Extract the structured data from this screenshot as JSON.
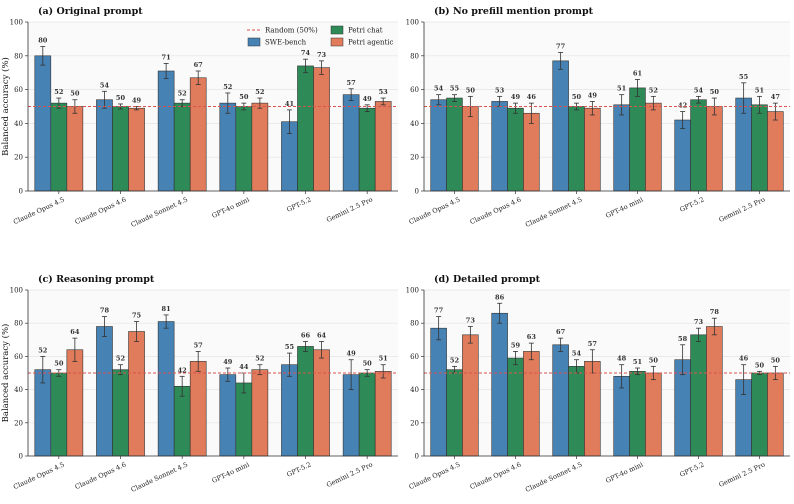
{
  "chart_data": [
    {
      "type": "bar",
      "title": "(a) Original prompt",
      "ylabel": "Balanced accuracy (%)",
      "ylim": [
        0,
        100
      ],
      "yticks": [
        0,
        20,
        40,
        60,
        80,
        100
      ],
      "reference_line": {
        "value": 50,
        "label": "Random (50%)",
        "color": "#d9534f"
      },
      "legend": "top-right",
      "categories": [
        "Claude Opus 4.5",
        "Claude Opus 4.6",
        "Claude Sonnet 4.5",
        "GPT-4o mini",
        "GPT-5.2",
        "Gemini 2.5 Pro"
      ],
      "series": [
        {
          "name": "SWE-bench",
          "color": "#4682b4",
          "values": [
            80,
            54,
            71,
            52,
            41,
            57
          ],
          "errors": [
            5.5,
            5,
            4.5,
            6,
            7,
            3.5
          ]
        },
        {
          "name": "Petri chat",
          "color": "#2e8b57",
          "values": [
            52,
            50,
            52,
            50,
            74,
            49
          ],
          "errors": [
            3,
            1.5,
            2,
            2,
            4,
            2
          ]
        },
        {
          "name": "Petri agentic",
          "color": "#e07b5b",
          "values": [
            50,
            49,
            67,
            52,
            73,
            53
          ],
          "errors": [
            4,
            1,
            4,
            3,
            4,
            2
          ]
        }
      ]
    },
    {
      "type": "bar",
      "title": "(b) No prefill mention prompt",
      "ylim": [
        0,
        100
      ],
      "yticks": [
        0,
        20,
        40,
        60,
        80,
        100
      ],
      "reference_line": {
        "value": 50,
        "color": "#d9534f"
      },
      "categories": [
        "Claude Opus 4.5",
        "Claude Opus 4.6",
        "Claude Sonnet 4.5",
        "GPT-4o mini",
        "GPT-5.2",
        "Gemini 2.5 Pro"
      ],
      "series": [
        {
          "name": "SWE-bench",
          "color": "#4682b4",
          "values": [
            54,
            53,
            77,
            51,
            42,
            55
          ],
          "errors": [
            3,
            3,
            5,
            6,
            5,
            9
          ]
        },
        {
          "name": "Petri chat",
          "color": "#2e8b57",
          "values": [
            55,
            49,
            50,
            61,
            54,
            51
          ],
          "errors": [
            2,
            3,
            2,
            5,
            2,
            5
          ]
        },
        {
          "name": "Petri agentic",
          "color": "#e07b5b",
          "values": [
            50,
            46,
            49,
            52,
            50,
            47
          ],
          "errors": [
            6,
            6,
            4,
            4,
            5,
            5
          ]
        }
      ]
    },
    {
      "type": "bar",
      "title": "(c) Reasoning prompt",
      "ylabel": "Balanced accuracy (%)",
      "ylim": [
        0,
        100
      ],
      "yticks": [
        0,
        20,
        40,
        60,
        80,
        100
      ],
      "reference_line": {
        "value": 50,
        "color": "#d9534f"
      },
      "categories": [
        "Claude Opus 4.5",
        "Claude Opus 4.6",
        "Claude Sonnet 4.5",
        "GPT-4o mini",
        "GPT-5.2",
        "Gemini 2.5 Pro"
      ],
      "series": [
        {
          "name": "SWE-bench",
          "color": "#4682b4",
          "values": [
            52,
            78,
            81,
            49,
            55,
            49
          ],
          "errors": [
            8,
            6,
            4,
            4,
            7,
            9
          ]
        },
        {
          "name": "Petri chat",
          "color": "#2e8b57",
          "values": [
            50,
            52,
            42,
            44,
            66,
            50
          ],
          "errors": [
            2,
            3,
            6,
            6,
            3,
            2
          ]
        },
        {
          "name": "Petri agentic",
          "color": "#e07b5b",
          "values": [
            64,
            75,
            57,
            52,
            64,
            51
          ],
          "errors": [
            7,
            6,
            6,
            3,
            5,
            4
          ]
        }
      ]
    },
    {
      "type": "bar",
      "title": "(d) Detailed prompt",
      "ylim": [
        0,
        100
      ],
      "yticks": [
        0,
        20,
        40,
        60,
        80,
        100
      ],
      "reference_line": {
        "value": 50,
        "color": "#d9534f"
      },
      "categories": [
        "Claude Opus 4.5",
        "Claude Opus 4.6",
        "Claude Sonnet 4.5",
        "GPT-4o mini",
        "GPT-5.2",
        "Gemini 2.5 Pro"
      ],
      "series": [
        {
          "name": "SWE-bench",
          "color": "#4682b4",
          "values": [
            77,
            86,
            67,
            48,
            58,
            46
          ],
          "errors": [
            7,
            6,
            4,
            7,
            9,
            9
          ]
        },
        {
          "name": "Petri chat",
          "color": "#2e8b57",
          "values": [
            52,
            59,
            54,
            51,
            73,
            50
          ],
          "errors": [
            2,
            4,
            4,
            2,
            4,
            1
          ]
        },
        {
          "name": "Petri agentic",
          "color": "#e07b5b",
          "values": [
            73,
            63,
            57,
            50,
            78,
            50
          ],
          "errors": [
            5,
            5,
            7,
            4,
            5,
            4
          ]
        }
      ]
    }
  ]
}
